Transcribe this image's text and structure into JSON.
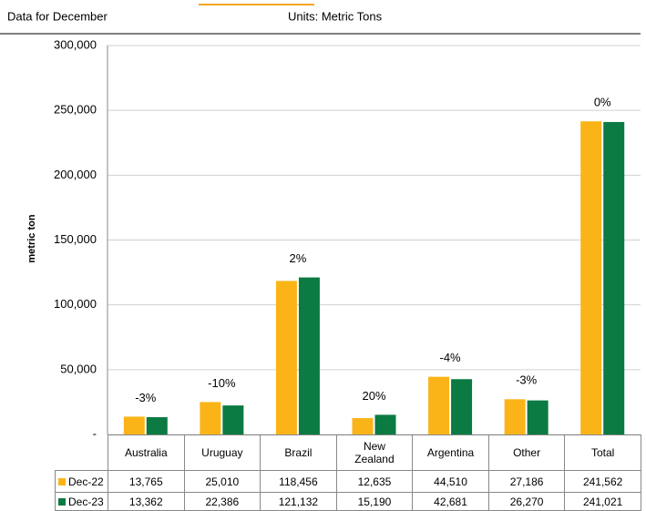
{
  "chart_data": {
    "type": "bar",
    "subtitle": "Data for December",
    "units_label": "Units: Metric Tons",
    "ylabel": "metric ton",
    "categories": [
      "Australia",
      "Uruguay",
      "Brazil",
      "New Zealand",
      "Argentina",
      "Other",
      "Total"
    ],
    "series": [
      {
        "name": "Dec-22",
        "color": "#fbb418",
        "values": [
          13765,
          25010,
          118456,
          12635,
          44510,
          27186,
          241562
        ],
        "value_labels": [
          "13,765",
          "25,010",
          "118,456",
          "12,635",
          "44,510",
          "27,186",
          "241,562"
        ]
      },
      {
        "name": "Dec-23",
        "color": "#0b7a43",
        "values": [
          13362,
          22386,
          121132,
          15190,
          42681,
          26270,
          241021
        ],
        "value_labels": [
          "13,362",
          "22,386",
          "121,132",
          "15,190",
          "42,681",
          "26,270",
          "241,021"
        ]
      }
    ],
    "change_labels": [
      "-3%",
      "-10%",
      "2%",
      "20%",
      "-4%",
      "-3%",
      "0%"
    ],
    "ylim": [
      0,
      300000
    ],
    "yticks": [
      {
        "value": 0,
        "label": "-"
      },
      {
        "value": 50000,
        "label": "50,000"
      },
      {
        "value": 100000,
        "label": "100,000"
      },
      {
        "value": 150000,
        "label": "150,000"
      },
      {
        "value": 200000,
        "label": "200,000"
      },
      {
        "value": 250000,
        "label": "250,000"
      },
      {
        "value": 300000,
        "label": "300,000"
      }
    ],
    "grid": true
  }
}
